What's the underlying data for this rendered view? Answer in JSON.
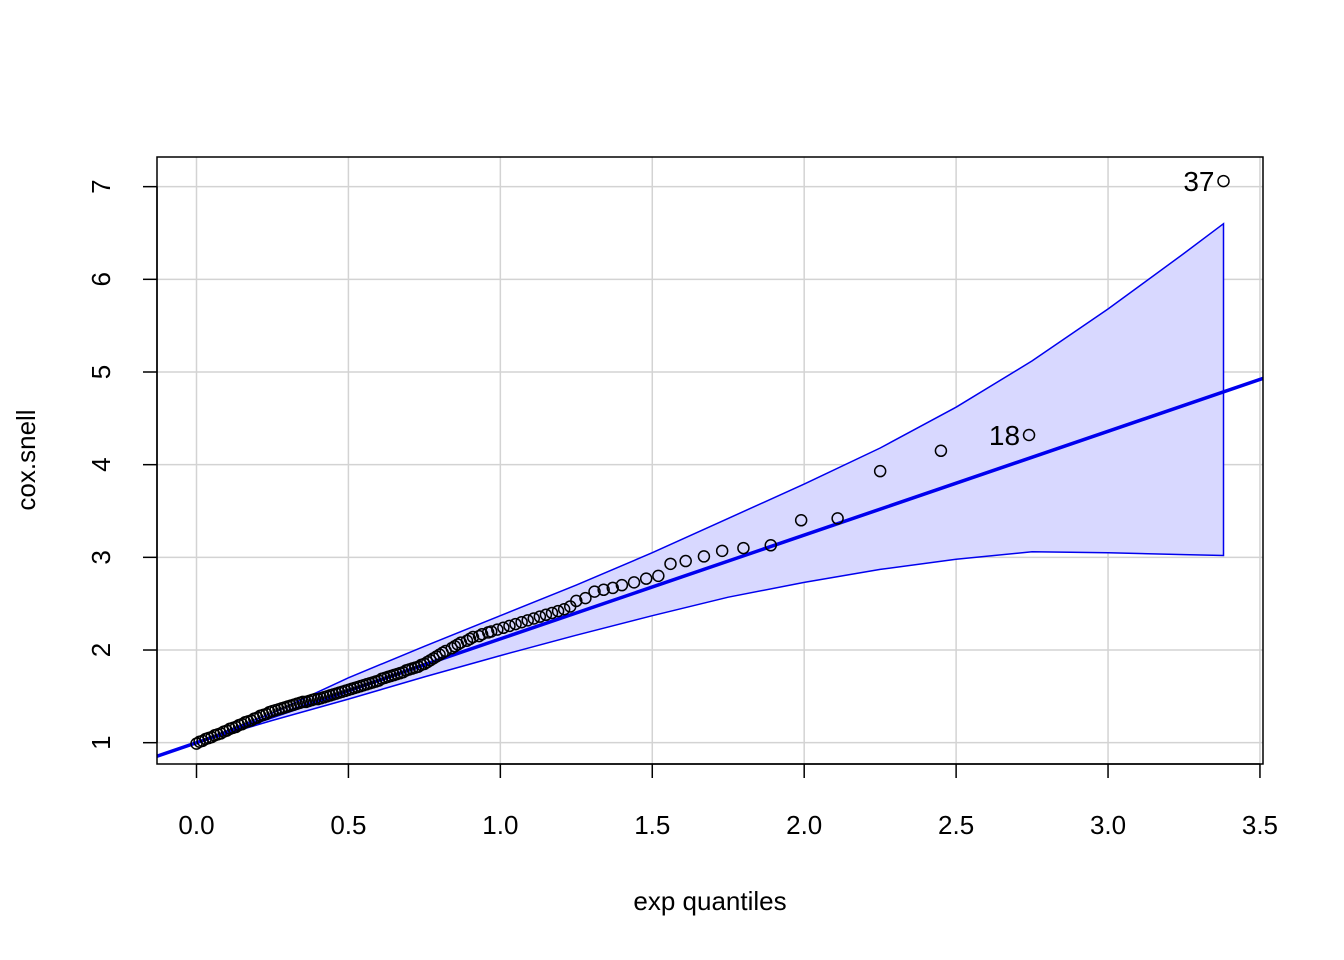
{
  "chart_data": {
    "type": "scatter",
    "title": "",
    "xlabel": "exp quantiles",
    "ylabel": "cox.snell",
    "xlim": [
      -0.13,
      3.51
    ],
    "ylim": [
      0.77,
      7.32
    ],
    "xticks": [
      0.0,
      0.5,
      1.0,
      1.5,
      2.0,
      2.5,
      3.0,
      3.5
    ],
    "xtick_labels": [
      "0.0",
      "0.5",
      "1.0",
      "1.5",
      "2.0",
      "2.5",
      "3.0",
      "3.5"
    ],
    "yticks": [
      1,
      2,
      3,
      4,
      5,
      6,
      7
    ],
    "ytick_labels": [
      "1",
      "2",
      "3",
      "4",
      "5",
      "6",
      "7"
    ],
    "grid": true,
    "colors": {
      "points": "#000000",
      "line": "#0000ee",
      "band_fill": "#d8d8ff",
      "band_edge": "#0000ee",
      "grid": "#d3d3d3"
    },
    "points": {
      "x": [
        0.0,
        0.01,
        0.02,
        0.03,
        0.04,
        0.05,
        0.06,
        0.07,
        0.08,
        0.09,
        0.1,
        0.11,
        0.12,
        0.13,
        0.14,
        0.15,
        0.16,
        0.17,
        0.18,
        0.19,
        0.2,
        0.21,
        0.22,
        0.23,
        0.24,
        0.25,
        0.26,
        0.27,
        0.28,
        0.29,
        0.3,
        0.31,
        0.32,
        0.33,
        0.34,
        0.35,
        0.36,
        0.37,
        0.38,
        0.39,
        0.4,
        0.41,
        0.42,
        0.43,
        0.44,
        0.45,
        0.46,
        0.47,
        0.48,
        0.49,
        0.5,
        0.51,
        0.52,
        0.53,
        0.54,
        0.55,
        0.56,
        0.57,
        0.58,
        0.59,
        0.6,
        0.61,
        0.62,
        0.63,
        0.64,
        0.65,
        0.66,
        0.67,
        0.68,
        0.69,
        0.7,
        0.71,
        0.72,
        0.73,
        0.74,
        0.75,
        0.76,
        0.77,
        0.78,
        0.79,
        0.8,
        0.81,
        0.82,
        0.84,
        0.85,
        0.86,
        0.87,
        0.89,
        0.9,
        0.91,
        0.93,
        0.94,
        0.96,
        0.97,
        0.99,
        1.01,
        1.03,
        1.05,
        1.07,
        1.09,
        1.11,
        1.13,
        1.15,
        1.17,
        1.19,
        1.21,
        1.23,
        1.25,
        1.28,
        1.31,
        1.34,
        1.37,
        1.4,
        1.44,
        1.48,
        1.52,
        1.56,
        1.61,
        1.67,
        1.73,
        1.8,
        1.89,
        1.99,
        2.11,
        2.25,
        2.45,
        2.74,
        3.38
      ],
      "y": [
        0.99,
        1.01,
        1.02,
        1.04,
        1.05,
        1.06,
        1.08,
        1.09,
        1.1,
        1.12,
        1.13,
        1.15,
        1.16,
        1.17,
        1.19,
        1.2,
        1.22,
        1.23,
        1.24,
        1.26,
        1.27,
        1.29,
        1.3,
        1.31,
        1.33,
        1.34,
        1.35,
        1.36,
        1.37,
        1.38,
        1.39,
        1.4,
        1.41,
        1.42,
        1.43,
        1.44,
        1.44,
        1.45,
        1.46,
        1.47,
        1.47,
        1.48,
        1.49,
        1.5,
        1.51,
        1.52,
        1.53,
        1.54,
        1.55,
        1.56,
        1.57,
        1.58,
        1.59,
        1.6,
        1.61,
        1.62,
        1.63,
        1.64,
        1.65,
        1.66,
        1.67,
        1.69,
        1.7,
        1.71,
        1.72,
        1.73,
        1.74,
        1.75,
        1.76,
        1.78,
        1.79,
        1.8,
        1.81,
        1.82,
        1.84,
        1.85,
        1.87,
        1.89,
        1.91,
        1.93,
        1.95,
        1.97,
        1.99,
        2.02,
        2.04,
        2.06,
        2.08,
        2.1,
        2.12,
        2.14,
        2.15,
        2.17,
        2.19,
        2.2,
        2.22,
        2.24,
        2.26,
        2.28,
        2.3,
        2.32,
        2.34,
        2.36,
        2.38,
        2.4,
        2.42,
        2.44,
        2.47,
        2.53,
        2.56,
        2.63,
        2.65,
        2.67,
        2.7,
        2.73,
        2.77,
        2.8,
        2.93,
        2.96,
        3.01,
        3.07,
        3.1,
        3.13,
        3.4,
        3.42,
        3.93,
        4.15,
        4.32,
        7.06
      ]
    },
    "labeled_points": [
      {
        "label": "37",
        "x": 3.38,
        "y": 7.06
      },
      {
        "label": "18",
        "x": 2.74,
        "y": 4.32
      }
    ],
    "reference_line": {
      "intercept": 1.0,
      "slope": 1.12
    },
    "confidence_band": {
      "x": [
        0.0,
        0.25,
        0.5,
        0.75,
        1.0,
        1.25,
        1.5,
        1.75,
        2.0,
        2.25,
        2.5,
        2.75,
        3.0,
        3.25,
        3.38
      ],
      "lower": [
        1.0,
        1.24,
        1.47,
        1.71,
        1.94,
        2.16,
        2.37,
        2.57,
        2.73,
        2.87,
        2.98,
        3.06,
        3.05,
        3.03,
        3.02
      ],
      "upper": [
        1.0,
        1.32,
        1.7,
        2.04,
        2.37,
        2.7,
        3.05,
        3.42,
        3.79,
        4.18,
        4.62,
        5.12,
        5.68,
        6.28,
        6.6
      ]
    }
  }
}
